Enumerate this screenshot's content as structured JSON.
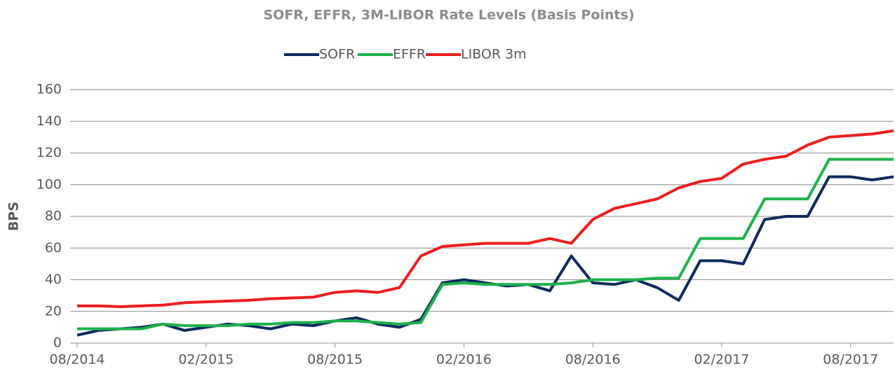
{
  "chart_data": {
    "type": "line",
    "title": "SOFR, EFFR, 3M-LIBOR Rate Levels (Basis Points)",
    "y_label": "BPS",
    "x": [
      "08/2014",
      "09/2014",
      "10/2014",
      "11/2014",
      "12/2014",
      "01/2015",
      "02/2015",
      "03/2015",
      "04/2015",
      "05/2015",
      "06/2015",
      "07/2015",
      "08/2015",
      "09/2015",
      "10/2015",
      "11/2015",
      "12/2015",
      "01/2016",
      "02/2016",
      "03/2016",
      "04/2016",
      "05/2016",
      "06/2016",
      "07/2016",
      "08/2016",
      "09/2016",
      "10/2016",
      "11/2016",
      "12/2016",
      "01/2017",
      "02/2017",
      "03/2017",
      "04/2017",
      "05/2017",
      "06/2017",
      "07/2017",
      "08/2017",
      "09/2017",
      "10/2017"
    ],
    "xticks": [
      "08/2014",
      "02/2015",
      "08/2015",
      "02/2016",
      "08/2016",
      "02/2017",
      "08/2017"
    ],
    "series": [
      {
        "name": "SOFR",
        "color": "#0e2a5e",
        "values": [
          5,
          8,
          9,
          10,
          12,
          8,
          10,
          12,
          11,
          9,
          12,
          11,
          14,
          16,
          12,
          10,
          15,
          38,
          40,
          38,
          36,
          37,
          33,
          55,
          38,
          37,
          40,
          35,
          27,
          52,
          52,
          50,
          78,
          80,
          80,
          105,
          105,
          103,
          105
        ]
      },
      {
        "name": "EFFR",
        "color": "#1db14b",
        "values": [
          9,
          9,
          9,
          9,
          12,
          11,
          11,
          11,
          12,
          12,
          13,
          13,
          14,
          14,
          13,
          12,
          13,
          37,
          38,
          37,
          37,
          37,
          37,
          38,
          40,
          40,
          40,
          41,
          41,
          66,
          66,
          66,
          91,
          91,
          91,
          116,
          116,
          116,
          116
        ]
      },
      {
        "name": "LIBOR 3m",
        "color": "#ee1c1c",
        "values": [
          23.5,
          23.5,
          23,
          23.5,
          24,
          25.5,
          26,
          26.5,
          27,
          28,
          28.5,
          29,
          32,
          33,
          32,
          35,
          55,
          61,
          62,
          63,
          63,
          63,
          66,
          63,
          78,
          85,
          88,
          91,
          98,
          102,
          104,
          113,
          116,
          118,
          125,
          130,
          131,
          132,
          134
        ]
      }
    ],
    "ylim": [
      0,
      160
    ],
    "yticks": [
      0,
      20,
      40,
      60,
      80,
      100,
      120,
      140,
      160
    ],
    "grid": true,
    "legend": "top"
  }
}
